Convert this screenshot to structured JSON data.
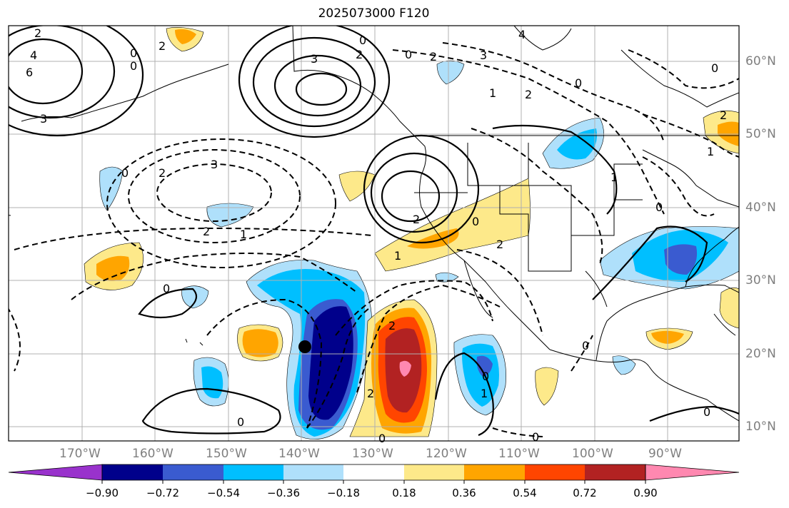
{
  "title": "2025073000 F120",
  "lon_labels": [
    "170°W",
    "160°W",
    "150°W",
    "140°W",
    "130°W",
    "120°W",
    "110°W",
    "100°W",
    "90°W"
  ],
  "lat_labels": [
    "60°N",
    "50°N",
    "40°N",
    "30°N",
    "20°N",
    "10°N"
  ],
  "colorbar": {
    "levels": [
      "−0.90",
      "−0.72",
      "−0.54",
      "−0.36",
      "−0.18",
      "0.18",
      "0.36",
      "0.54",
      "0.72",
      "0.90"
    ],
    "colors": [
      "#9932cc",
      "#00008b",
      "#3a5bd0",
      "#00bfff",
      "#afe0fb",
      "#ffffff",
      "#fde98a",
      "#ffa500",
      "#ff4500",
      "#b22222",
      "#ff88b0"
    ]
  },
  "contour_labels": [
    "2",
    "4",
    "6",
    "3",
    "0",
    "2",
    "0",
    "3",
    "0",
    "2",
    "2",
    "3",
    "1",
    "2",
    "0",
    "4",
    "1",
    "0",
    "0",
    "2",
    "3",
    "0",
    "2",
    "2",
    "1",
    "1",
    "0",
    "2",
    "2",
    "0",
    "2",
    "1",
    "0",
    "2",
    "0",
    "0",
    "0",
    "1",
    "0",
    "0",
    "0"
  ],
  "marker": "storm-position"
}
